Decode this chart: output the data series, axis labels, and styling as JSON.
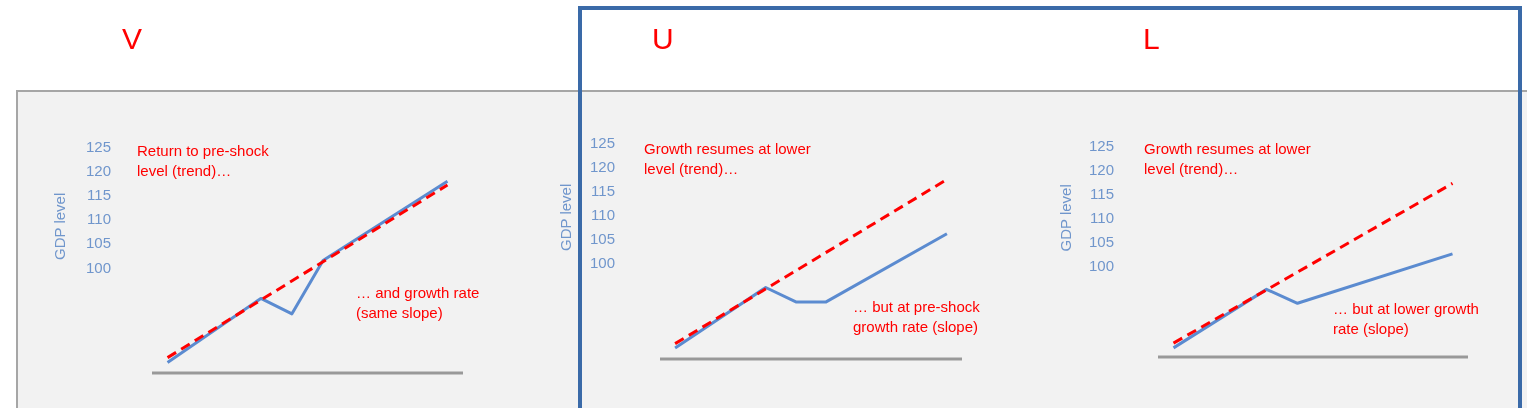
{
  "chart_data": [
    {
      "type": "line",
      "title": "V",
      "ylabel": "GDP level",
      "categories": [
        null,
        null,
        null,
        null,
        null,
        null,
        null,
        null,
        null,
        null
      ],
      "marker": "none",
      "grid": false,
      "legend": false,
      "tick_labels": "y",
      "series": [
        {
          "color": "#5b8bd0",
          "line_style": "solid",
          "values": [
            80.2,
            null,
            null,
            93.5,
            90.3,
            101.4,
            null,
            null,
            null,
            117.9
          ]
        },
        {
          "color": "#ff0000",
          "line_style": "dashed",
          "values": [
            81.2,
            null,
            null,
            null,
            null,
            null,
            null,
            null,
            null,
            117.1
          ]
        }
      ],
      "ylim": [
        78,
        125
      ],
      "yticks": [
        100,
        105,
        110,
        115,
        120,
        125
      ],
      "annotations": [
        "Return to pre-shock level (trend)…",
        "… and growth rate (same slope)"
      ]
    },
    {
      "type": "line",
      "title": "U",
      "ylabel": "GDP level",
      "categories": [
        null,
        null,
        null,
        null,
        null,
        null,
        null,
        null,
        null,
        null
      ],
      "marker": "none",
      "grid": false,
      "legend": false,
      "tick_labels": "y",
      "series": [
        {
          "color": "#5b8bd0",
          "line_style": "solid",
          "values": [
            82.3,
            null,
            null,
            94.9,
            91.9,
            91.9,
            null,
            null,
            null,
            106.1
          ]
        },
        {
          "color": "#ff0000",
          "line_style": "dashed",
          "values": [
            83.2,
            null,
            null,
            null,
            null,
            null,
            null,
            null,
            null,
            117.4
          ]
        }
      ],
      "ylim": [
        80,
        125
      ],
      "yticks": [
        100,
        105,
        110,
        115,
        120,
        125
      ],
      "annotations": [
        "Growth resumes at lower level (trend)…",
        "… but at pre-shock growth rate (slope)"
      ]
    },
    {
      "type": "line",
      "title": "L",
      "ylabel": "GDP level",
      "categories": [
        null,
        null,
        null,
        null,
        null,
        null,
        null,
        null,
        null,
        null
      ],
      "marker": "none",
      "grid": false,
      "legend": false,
      "tick_labels": "y",
      "series": [
        {
          "color": "#5b8bd0",
          "line_style": "solid",
          "values": [
            82.9,
            null,
            null,
            95.1,
            92.2,
            null,
            null,
            null,
            null,
            102.5
          ]
        },
        {
          "color": "#ff0000",
          "line_style": "dashed",
          "values": [
            83.9,
            null,
            null,
            null,
            null,
            null,
            null,
            null,
            null,
            117.2
          ]
        }
      ],
      "ylim": [
        81,
        125
      ],
      "yticks": [
        100,
        105,
        110,
        115,
        120,
        125
      ],
      "annotations": [
        "Growth resumes at lower level (trend)…",
        "… but at lower growth rate (slope)"
      ]
    }
  ]
}
